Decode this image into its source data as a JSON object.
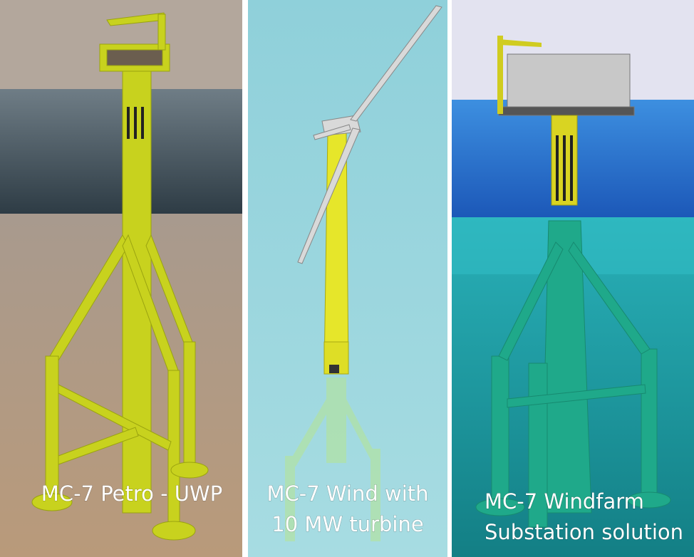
{
  "panels": [
    {
      "caption": [
        "MC-7 Petro - UWP"
      ]
    },
    {
      "caption": [
        "MC-7 Wind with",
        "10 MW turbine"
      ]
    },
    {
      "caption": [
        "MC-7 Windfarm",
        "Substation solution"
      ]
    }
  ]
}
